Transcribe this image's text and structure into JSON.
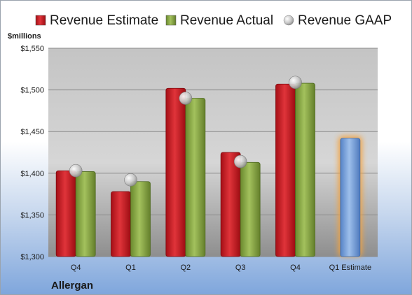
{
  "chart_data": {
    "type": "bar",
    "company": "Allergan",
    "unit_label": "$millions",
    "categories": [
      "Q4",
      "Q1",
      "Q2",
      "Q3",
      "Q4",
      "Q1 Estimate"
    ],
    "series": [
      {
        "name": "Revenue Estimate",
        "kind": "bar",
        "color": "#c0151d",
        "values": [
          1403,
          1378,
          1502,
          1425,
          1507,
          null
        ]
      },
      {
        "name": "Revenue Actual",
        "kind": "bar",
        "color": "#7e9c3c",
        "values": [
          1402,
          1390,
          1490,
          1413,
          1508,
          null
        ]
      },
      {
        "name": "Revenue GAAP",
        "kind": "marker",
        "color": "#bfbfbf",
        "values": [
          1403,
          1392,
          1490,
          1414,
          1509,
          null
        ]
      }
    ],
    "estimate_bar": {
      "category": "Q1 Estimate",
      "value": 1442,
      "color": "#6f9bd8",
      "glow_color": "#f5a23a"
    },
    "ylim": [
      1300,
      1550
    ],
    "yticks": [
      1300,
      1350,
      1400,
      1450,
      1500,
      1550
    ],
    "ytick_labels": [
      "$1,300",
      "$1,350",
      "$1,400",
      "$1,450",
      "$1,500",
      "$1,550"
    ],
    "grid": true,
    "legend_position": "top",
    "plot_background": "gray-gradient"
  }
}
